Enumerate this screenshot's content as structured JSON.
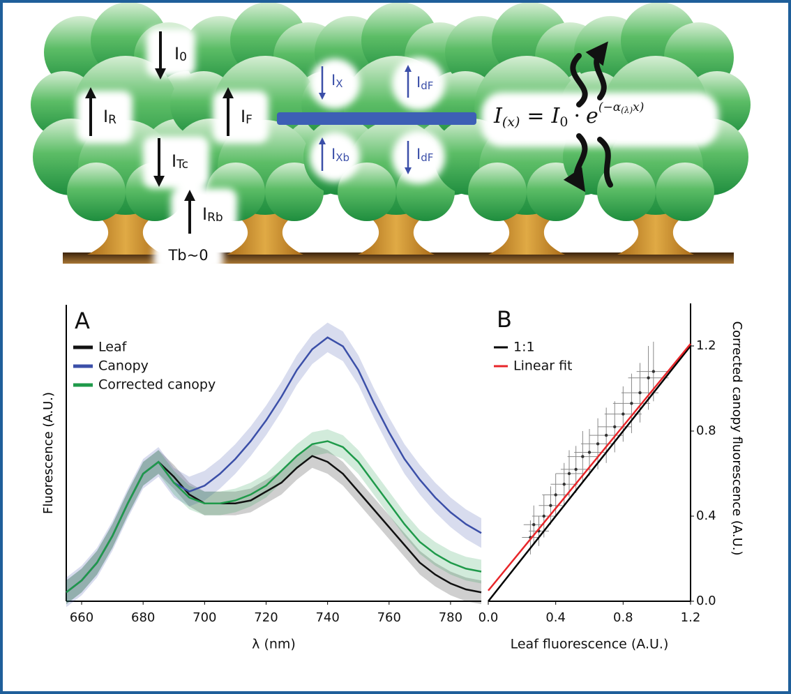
{
  "diagram": {
    "labels": [
      {
        "text": "I",
        "sub": "0"
      },
      {
        "text": "I",
        "sub": "R"
      },
      {
        "text": "I",
        "sub": "Tc"
      },
      {
        "text": "I",
        "sub": "Rb"
      },
      {
        "text": "I",
        "sub": "F"
      },
      {
        "text": "I",
        "sub": "X"
      },
      {
        "text": "I",
        "sub": "dF"
      },
      {
        "text": "I",
        "sub": "Xb"
      },
      {
        "text": "I",
        "sub": "dF"
      }
    ],
    "ground_label": "Tb~0",
    "formula": {
      "lhs": "I",
      "lhs_sub": "(x)",
      "eq": "=",
      "i0": "I",
      "i0_sub": "0",
      "dot": "·",
      "e": "e",
      "exp_a": "(−α",
      "exp_sub": "(λ)",
      "exp_b": "x)"
    }
  },
  "chart_data": [
    {
      "type": "line",
      "panel": "A",
      "xlabel": "λ (nm)",
      "ylabel": "Fluorescence (A.U.)",
      "x": [
        655,
        660,
        665,
        670,
        675,
        680,
        685,
        690,
        695,
        700,
        705,
        710,
        715,
        720,
        725,
        730,
        735,
        740,
        745,
        750,
        755,
        760,
        765,
        770,
        775,
        780,
        785,
        790
      ],
      "xlim": [
        655,
        790
      ],
      "xticks": [
        660,
        680,
        700,
        720,
        740,
        760,
        780
      ],
      "ylim": [
        0,
        1
      ],
      "legend": "upper left",
      "series": [
        {
          "name": "Leaf",
          "color": "#111111",
          "error": 0.04,
          "values": [
            0.03,
            0.07,
            0.13,
            0.22,
            0.33,
            0.43,
            0.47,
            0.42,
            0.36,
            0.33,
            0.33,
            0.33,
            0.34,
            0.37,
            0.4,
            0.45,
            0.49,
            0.47,
            0.43,
            0.37,
            0.31,
            0.25,
            0.19,
            0.13,
            0.09,
            0.06,
            0.04,
            0.03
          ]
        },
        {
          "name": "Canopy",
          "color": "#3b4fa8",
          "error": 0.05,
          "values": [
            0.03,
            0.07,
            0.13,
            0.22,
            0.33,
            0.43,
            0.47,
            0.4,
            0.37,
            0.39,
            0.43,
            0.48,
            0.54,
            0.61,
            0.69,
            0.78,
            0.85,
            0.89,
            0.86,
            0.78,
            0.67,
            0.57,
            0.48,
            0.41,
            0.35,
            0.3,
            0.26,
            0.23
          ]
        },
        {
          "name": "Corrected canopy",
          "color": "#1f9a4a",
          "error": 0.04,
          "values": [
            0.03,
            0.07,
            0.13,
            0.22,
            0.33,
            0.43,
            0.47,
            0.4,
            0.35,
            0.33,
            0.33,
            0.34,
            0.36,
            0.39,
            0.44,
            0.49,
            0.53,
            0.54,
            0.52,
            0.47,
            0.4,
            0.33,
            0.26,
            0.2,
            0.16,
            0.13,
            0.11,
            0.1
          ]
        }
      ]
    },
    {
      "type": "scatter",
      "panel": "B",
      "xlabel": "Leaf fluorescence (A.U.)",
      "ylabel": "Corrected canopy fluorescence (A.U.)",
      "xlim": [
        0,
        1.2
      ],
      "ylim": [
        0,
        1.4
      ],
      "legend": "upper left",
      "xticks": [
        {
          "value": 0,
          "label": "0.0"
        },
        0.4,
        0.8,
        1.2
      ],
      "yticks": [
        {
          "value": 0,
          "label": "0.0"
        },
        0.4,
        0.8,
        1.2
      ],
      "lines": [
        {
          "name": "1:1",
          "color": "#000000",
          "x": [
            0,
            1.2
          ],
          "values": [
            0,
            1.2
          ]
        },
        {
          "name": "Linear fit",
          "color": "#e8262a",
          "x": [
            0,
            1.2
          ],
          "values": [
            0.05,
            1.21
          ]
        }
      ],
      "points": {
        "color": "#333333",
        "x": [
          0.25,
          0.27,
          0.3,
          0.33,
          0.37,
          0.4,
          0.45,
          0.48,
          0.52,
          0.56,
          0.6,
          0.65,
          0.7,
          0.75,
          0.8,
          0.85,
          0.9,
          0.95,
          0.98
        ],
        "values": [
          0.3,
          0.36,
          0.33,
          0.4,
          0.45,
          0.5,
          0.55,
          0.6,
          0.62,
          0.68,
          0.7,
          0.74,
          0.78,
          0.82,
          0.88,
          0.93,
          0.98,
          1.05,
          1.08
        ],
        "xerr": [
          0.05,
          0.06,
          0.06,
          0.07,
          0.07,
          0.08,
          0.08,
          0.08,
          0.09,
          0.09,
          0.09,
          0.1,
          0.1,
          0.1,
          0.11,
          0.11,
          0.11,
          0.12,
          0.1
        ],
        "yerr": [
          0.08,
          0.09,
          0.07,
          0.1,
          0.09,
          0.1,
          0.1,
          0.11,
          0.11,
          0.12,
          0.11,
          0.12,
          0.13,
          0.12,
          0.13,
          0.14,
          0.14,
          0.15,
          0.14
        ]
      }
    }
  ]
}
